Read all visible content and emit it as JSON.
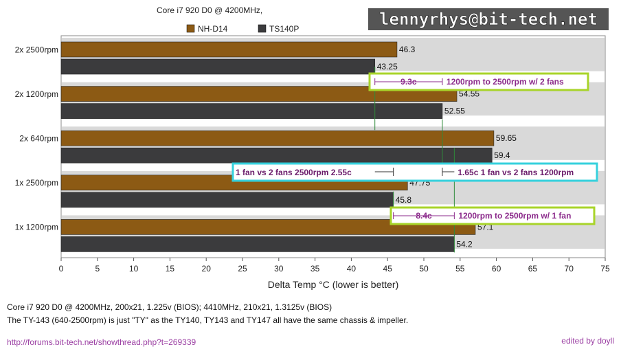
{
  "chart_data": {
    "type": "bar",
    "orientation": "horizontal",
    "title": "Core i7 920 D0 @ 4200MHz,",
    "watermark": "lennyrhys@bit-tech.net",
    "categories": [
      "2x 2500rpm",
      "2x 1200rpm",
      "2x 640rpm",
      "1x 2500rpm",
      "1x 1200rpm"
    ],
    "series": [
      {
        "name": "NH-D14",
        "color": "#8c5a14",
        "values": [
          46.3,
          54.55,
          59.65,
          47.75,
          57.1
        ],
        "labels": [
          "46.3",
          "54.55",
          "59.65",
          "47.75",
          "57.1"
        ]
      },
      {
        "name": "TS140P",
        "color": "#3b3b3d",
        "values": [
          43.25,
          52.55,
          59.4,
          45.8,
          54.2
        ],
        "labels": [
          "43.25",
          "52.55",
          "59.4",
          "45.8",
          "54.2"
        ]
      }
    ],
    "xlim": [
      0,
      75
    ],
    "xticks": [
      "0",
      "5",
      "10",
      "15",
      "20",
      "25",
      "30",
      "35",
      "40",
      "45",
      "50",
      "55",
      "60",
      "65",
      "70",
      "75"
    ],
    "xlabel": "Delta Temp °C (lower is better)",
    "legend_position": "top",
    "annotations": [
      {
        "text_a": "9.3c",
        "text_b": "1200rpm to 2500rpm w/ 2 fans",
        "from": 43.25,
        "to": 52.55,
        "box_color": "#a8d42a",
        "text_color": "#8b2a8b"
      },
      {
        "text_a": "1 fan vs 2 fans 2500rpm 2.55c",
        "text_b": "1.65c 1 fan vs 2 fans 1200rpm",
        "from": 43.25,
        "to": 45.8,
        "from2": 52.55,
        "to2": 54.2,
        "box_color": "#35d1dd",
        "text_color": "#6a1b6a"
      },
      {
        "text_a": "8.4c",
        "text_b": "1200rpm to 2500rpm w/ 1 fan",
        "from": 45.8,
        "to": 54.2,
        "box_color": "#a8d42a",
        "text_color": "#8b2a8b"
      }
    ]
  },
  "footer": {
    "line1": "Core i7 920 D0 @ 4200MHz, 200x21, 1.225v (BIOS); 4410MHz, 210x21, 1.3125v (BIOS)",
    "line2": "The TY-143 (640-2500rpm) is just \"TY\" as the TY140, TY143 and TY147 all have the same chassis & impeller.",
    "link": "http://forums.bit-tech.net/showthread.php?t=269339",
    "edited": "edited by doyll"
  }
}
